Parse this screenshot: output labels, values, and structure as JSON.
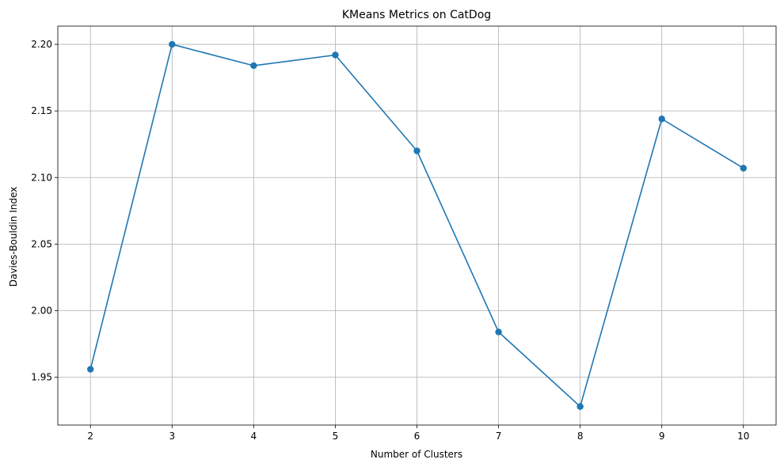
{
  "chart_data": {
    "type": "line",
    "title": "KMeans Metrics on CatDog",
    "xlabel": "Number of Clusters",
    "ylabel": "Davies-Bouldin Index",
    "x": [
      2,
      3,
      4,
      5,
      6,
      7,
      8,
      9,
      10
    ],
    "series": [
      {
        "values": [
          1.956,
          2.2,
          2.184,
          2.192,
          2.12,
          1.984,
          1.928,
          2.144,
          2.107
        ],
        "color": "#1f77b4",
        "marker": "circle"
      }
    ],
    "xticks": [
      "2",
      "3",
      "4",
      "5",
      "6",
      "7",
      "8",
      "9",
      "10"
    ],
    "yticks": [
      "1.95",
      "2.00",
      "2.05",
      "2.10",
      "2.15",
      "2.20"
    ],
    "xlim": [
      1.6,
      10.4
    ],
    "ylim": [
      1.9141,
      2.2137
    ],
    "grid": true
  }
}
